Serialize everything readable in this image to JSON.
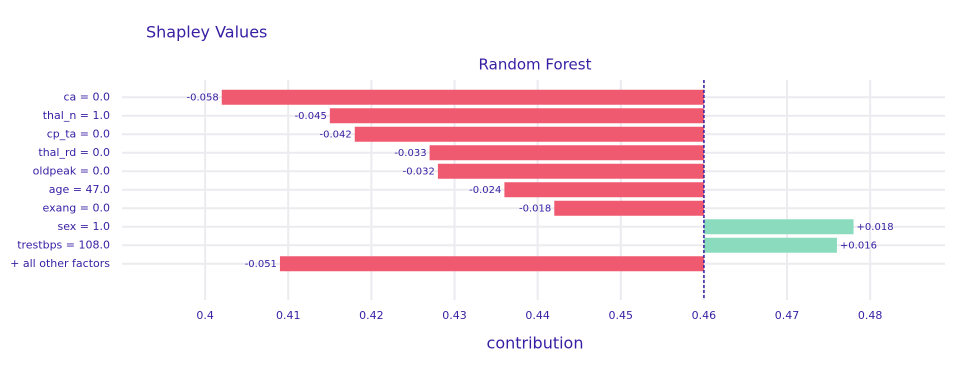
{
  "chart_data": {
    "type": "bar",
    "orientation": "horizontal",
    "title": "Shapley Values",
    "subtitle": "Random Forest",
    "x_label": "contribution",
    "categories": [
      "ca = 0.0",
      "thal_n = 1.0",
      "cp_ta = 0.0",
      "thal_rd = 0.0",
      "oldpeak = 0.0",
      "age = 47.0",
      "exang = 0.0",
      "sex = 1.0",
      "trestbps = 108.0",
      "+ all other factors"
    ],
    "values": [
      -0.058,
      -0.045,
      -0.042,
      -0.033,
      -0.032,
      -0.024,
      -0.018,
      0.018,
      0.016,
      -0.051
    ],
    "value_labels": [
      "-0.058",
      "-0.045",
      "-0.042",
      "-0.033",
      "-0.032",
      "-0.024",
      "-0.018",
      "+0.018",
      "+0.016",
      "-0.051"
    ],
    "baseline": 0.46,
    "colors": {
      "negative": "#f05a71",
      "positive": "#8bdcbe"
    },
    "xlim": [
      0.39,
      0.489
    ],
    "xticks": [
      0.4,
      0.41,
      0.42,
      0.43,
      0.44,
      0.45,
      0.46,
      0.47,
      0.48
    ],
    "grid": true
  }
}
